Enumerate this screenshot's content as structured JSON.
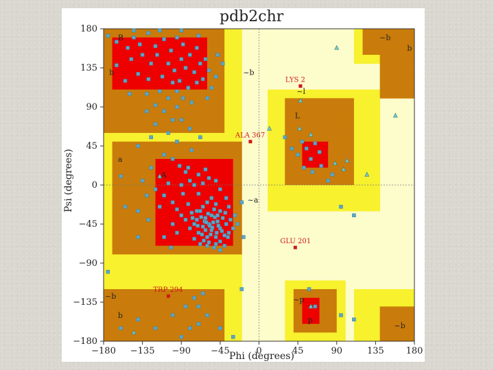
{
  "chart_data": {
    "type": "scatter",
    "title": "pdb2chr",
    "xlabel": "Phi (degrees)",
    "ylabel": "Psi (degrees)",
    "xlim": [
      -180,
      180
    ],
    "ylim": [
      -180,
      180
    ],
    "xticks": [
      -180,
      -135,
      -90,
      -45,
      0,
      45,
      90,
      135,
      180
    ],
    "yticks": [
      180,
      135,
      90,
      45,
      0,
      -45,
      -90,
      -135,
      -180
    ],
    "grid": "dashed lines at phi=0 and psi=0",
    "colors": {
      "disallowed": "#fdfccb",
      "generous": "#f7f12e",
      "allowed": "#c97c0b",
      "core": "#ee0000",
      "point": "#5ba6c9",
      "outlier": "#cc1a1a"
    },
    "region_labels": [
      {
        "text": "A",
        "phi": -115,
        "psi": 12
      },
      {
        "text": "a",
        "phi": -165,
        "psi": 30
      },
      {
        "text": "~a",
        "phi": -15,
        "psi": -17
      },
      {
        "text": "B",
        "phi": -165,
        "psi": 170
      },
      {
        "text": "b",
        "phi": -175,
        "psi": 130
      },
      {
        "text": "~b",
        "phi": -20,
        "psi": 130
      },
      {
        "text": "~b",
        "phi": 138,
        "psi": 170
      },
      {
        "text": "b",
        "phi": 170,
        "psi": 158
      },
      {
        "text": "~l",
        "phi": 42,
        "psi": 108
      },
      {
        "text": "L",
        "phi": 40,
        "psi": 80
      },
      {
        "text": "~b",
        "phi": -180,
        "psi": -128
      },
      {
        "text": "b",
        "phi": -165,
        "psi": -150
      },
      {
        "text": "~p",
        "phi": 38,
        "psi": -132
      },
      {
        "text": "p",
        "phi": 55,
        "psi": -155
      },
      {
        "text": "~b",
        "phi": 155,
        "psi": -162
      }
    ],
    "outliers": [
      {
        "label": "LYS 2",
        "phi": 48,
        "psi": 114
      },
      {
        "label": "ALA 367",
        "phi": -10,
        "psi": 50
      },
      {
        "label": "GLU 201",
        "phi": 42,
        "psi": -72
      },
      {
        "label": "TRP 294",
        "phi": -105,
        "psi": -128
      }
    ],
    "triangles": [
      {
        "phi": 90,
        "psi": 158
      },
      {
        "phi": 48,
        "psi": 97
      },
      {
        "phi": 12,
        "psi": 65
      },
      {
        "phi": 47,
        "psi": 65
      },
      {
        "phi": 60,
        "psi": 58
      },
      {
        "phi": 88,
        "psi": 25
      },
      {
        "phi": 102,
        "psi": 28
      },
      {
        "phi": 98,
        "psi": 18
      },
      {
        "phi": 125,
        "psi": 12
      },
      {
        "phi": 158,
        "psi": 80
      },
      {
        "phi": 60,
        "psi": -140
      },
      {
        "phi": -145,
        "psi": -170
      },
      {
        "phi": -115,
        "psi": 10
      }
    ],
    "series": [
      {
        "points": [
          [
            -175,
            172
          ],
          [
            -165,
            165
          ],
          [
            -152,
            158
          ],
          [
            -145,
            170
          ],
          [
            -138,
            162
          ],
          [
            -128,
            175
          ],
          [
            -120,
            160
          ],
          [
            -110,
            168
          ],
          [
            -102,
            155
          ],
          [
            -95,
            170
          ],
          [
            -88,
            162
          ],
          [
            -80,
            150
          ],
          [
            -72,
            158
          ],
          [
            -62,
            145
          ],
          [
            -148,
            145
          ],
          [
            -135,
            150
          ],
          [
            -125,
            140
          ],
          [
            -118,
            150
          ],
          [
            -105,
            140
          ],
          [
            -98,
            132
          ],
          [
            -90,
            145
          ],
          [
            -85,
            135
          ],
          [
            -75,
            130
          ],
          [
            -68,
            140
          ],
          [
            -58,
            132
          ],
          [
            -50,
            125
          ],
          [
            -140,
            128
          ],
          [
            -128,
            122
          ],
          [
            -112,
            125
          ],
          [
            -100,
            118
          ],
          [
            -92,
            120
          ],
          [
            -82,
            112
          ],
          [
            -72,
            118
          ],
          [
            -65,
            122
          ],
          [
            -55,
            112
          ],
          [
            -130,
            105
          ],
          [
            -115,
            108
          ],
          [
            -105,
            100
          ],
          [
            -95,
            108
          ],
          [
            -88,
            100
          ],
          [
            -78,
            95
          ],
          [
            -165,
            138
          ],
          [
            -155,
            120
          ],
          [
            -150,
            105
          ],
          [
            -120,
            92
          ],
          [
            -110,
            85
          ],
          [
            -100,
            75
          ],
          [
            -145,
            178
          ],
          [
            -115,
            178
          ],
          [
            -90,
            178
          ],
          [
            -70,
            172
          ],
          [
            -48,
            150
          ],
          [
            -42,
            140
          ],
          [
            -60,
            100
          ],
          [
            -80,
            65
          ],
          [
            -95,
            50
          ],
          [
            -110,
            35
          ],
          [
            -125,
            20
          ],
          [
            -135,
            5
          ],
          [
            -100,
            30
          ],
          [
            -92,
            22
          ],
          [
            -85,
            15
          ],
          [
            -120,
            -5
          ],
          [
            -110,
            -12
          ],
          [
            -100,
            -20
          ],
          [
            -95,
            -28
          ],
          [
            -88,
            -10
          ],
          [
            -82,
            -22
          ],
          [
            -78,
            -32
          ],
          [
            -72,
            -40
          ],
          [
            -68,
            -30
          ],
          [
            -62,
            -38
          ],
          [
            -58,
            -45
          ],
          [
            -55,
            -35
          ],
          [
            -52,
            -28
          ],
          [
            -48,
            -42
          ],
          [
            -45,
            -50
          ],
          [
            -42,
            -38
          ],
          [
            -38,
            -45
          ],
          [
            -35,
            -55
          ],
          [
            -65,
            -48
          ],
          [
            -70,
            -55
          ],
          [
            -60,
            -60
          ],
          [
            -55,
            -52
          ],
          [
            -50,
            -60
          ],
          [
            -45,
            -65
          ],
          [
            -40,
            -58
          ],
          [
            -75,
            -45
          ],
          [
            -80,
            -50
          ],
          [
            -85,
            -40
          ],
          [
            -90,
            -35
          ],
          [
            -65,
            -25
          ],
          [
            -60,
            -20
          ],
          [
            -55,
            -15
          ],
          [
            -50,
            -22
          ],
          [
            -45,
            -30
          ],
          [
            -70,
            -10
          ],
          [
            -75,
            0
          ],
          [
            -80,
            5
          ],
          [
            -65,
            2
          ],
          [
            -58,
            8
          ],
          [
            -90,
            0
          ],
          [
            -105,
            2
          ],
          [
            -115,
            -25
          ],
          [
            -95,
            -55
          ],
          [
            -100,
            -45
          ],
          [
            -75,
            -62
          ],
          [
            -68,
            -68
          ],
          [
            -60,
            -70
          ],
          [
            -52,
            -72
          ],
          [
            -45,
            -75
          ],
          [
            -40,
            -70
          ],
          [
            -130,
            -12
          ],
          [
            -140,
            -30
          ],
          [
            -128,
            -40
          ],
          [
            -110,
            -60
          ],
          [
            -102,
            -72
          ],
          [
            -140,
            -60
          ],
          [
            -155,
            -25
          ],
          [
            -160,
            10
          ],
          [
            -140,
            45
          ],
          [
            -125,
            55
          ],
          [
            -20,
            -20
          ],
          [
            -28,
            -35
          ],
          [
            -30,
            -50
          ],
          [
            -25,
            -45
          ],
          [
            -18,
            -60
          ],
          [
            -62,
            -52
          ],
          [
            -57,
            -47
          ],
          [
            -53,
            -43
          ],
          [
            -63,
            -42
          ],
          [
            -67,
            -37
          ],
          [
            -59,
            -33
          ],
          [
            -51,
            -37
          ],
          [
            -47,
            -47
          ],
          [
            -43,
            -53
          ],
          [
            -71,
            -47
          ],
          [
            -66,
            -57
          ],
          [
            -56,
            -57
          ],
          [
            -49,
            -55
          ],
          [
            -61,
            -43
          ],
          [
            -54,
            -49
          ],
          [
            -48,
            -35
          ],
          [
            -72,
            -30
          ],
          [
            -77,
            -38
          ],
          [
            -64,
            -64
          ],
          [
            -58,
            -66
          ],
          [
            -50,
            -68
          ],
          [
            -36,
            -60
          ],
          [
            -33,
            -40
          ],
          [
            -39,
            -32
          ],
          [
            -82,
            20
          ],
          [
            -70,
            12
          ],
          [
            -62,
            18
          ],
          [
            -50,
            5
          ],
          [
            -45,
            -5
          ],
          [
            -38,
            -15
          ],
          [
            -35,
            -25
          ],
          [
            -105,
            60
          ],
          [
            -90,
            75
          ],
          [
            -120,
            70
          ],
          [
            -130,
            85
          ],
          [
            -95,
            90
          ],
          [
            -78,
            40
          ],
          [
            -68,
            55
          ],
          [
            30,
            55
          ],
          [
            38,
            42
          ],
          [
            45,
            35
          ],
          [
            50,
            50
          ],
          [
            55,
            42
          ],
          [
            60,
            30
          ],
          [
            65,
            48
          ],
          [
            70,
            38
          ],
          [
            52,
            20
          ],
          [
            62,
            15
          ],
          [
            72,
            22
          ],
          [
            80,
            5
          ],
          [
            85,
            12
          ],
          [
            95,
            -25
          ],
          [
            110,
            -35
          ],
          [
            58,
            -120
          ],
          [
            95,
            -150
          ],
          [
            110,
            -155
          ],
          [
            65,
            -140
          ],
          [
            -90,
            -175
          ],
          [
            -80,
            -165
          ],
          [
            -70,
            -160
          ],
          [
            -60,
            -150
          ],
          [
            -45,
            -165
          ],
          [
            -30,
            -175
          ],
          [
            -140,
            -155
          ],
          [
            -120,
            -165
          ],
          [
            -100,
            -150
          ],
          [
            -85,
            -140
          ],
          [
            -75,
            -130
          ],
          [
            -70,
            -140
          ],
          [
            -65,
            -125
          ],
          [
            -160,
            -165
          ],
          [
            -175,
            -100
          ],
          [
            -20,
            -120
          ]
        ]
      }
    ]
  }
}
